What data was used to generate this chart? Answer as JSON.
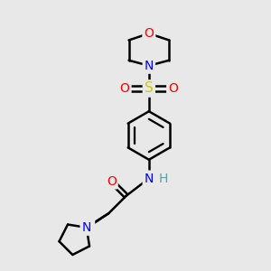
{
  "background_color": "#e8e8e8",
  "bond_color": "#000000",
  "bond_width": 1.8,
  "atom_colors": {
    "O": "#ff0000",
    "N": "#0000ff",
    "S": "#cccc00",
    "C": "#000000",
    "H": "#5f9ea0"
  },
  "font_size": 10,
  "figsize": [
    3.0,
    3.0
  ],
  "dpi": 100
}
